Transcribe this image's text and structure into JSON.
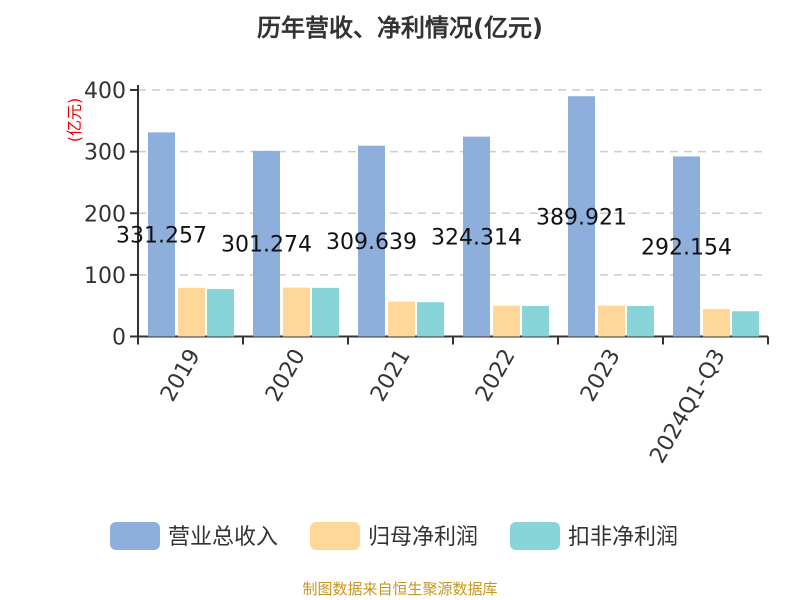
{
  "chart_data": {
    "type": "bar",
    "title": "历年营收、净利情况(亿元)",
    "ylabel": "(亿元)",
    "ylim": [
      0,
      400
    ],
    "yticks": [
      0,
      100,
      200,
      300,
      400
    ],
    "grid": true,
    "legend_position": "bottom",
    "categories": [
      "2019",
      "2020",
      "2021",
      "2022",
      "2023",
      "2024Q1-Q3"
    ],
    "series": [
      {
        "name": "营业总收入",
        "color": "#8eaedb",
        "values": [
          331.257,
          301.274,
          309.639,
          324.314,
          389.921,
          292.154
        ],
        "labels": [
          "331.257",
          "301.274",
          "309.639",
          "324.314",
          "389.921",
          "292.154"
        ]
      },
      {
        "name": "归母净利润",
        "color": "#ffd899",
        "values": [
          79,
          79.4,
          56.6,
          50,
          50,
          44.7
        ]
      },
      {
        "name": "扣非净利润",
        "color": "#87d5d9",
        "values": [
          77,
          79,
          55.6,
          49.6,
          49.6,
          41
        ]
      }
    ]
  },
  "source": "制图数据来自恒生聚源数据库"
}
